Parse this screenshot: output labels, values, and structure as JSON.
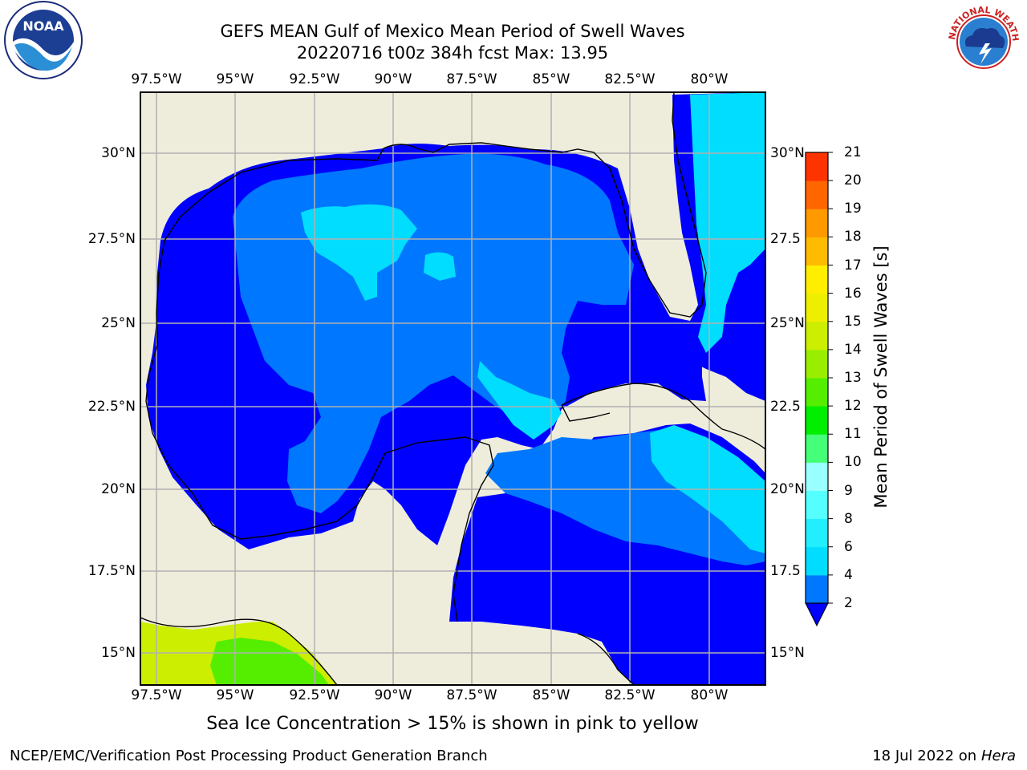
{
  "header": {
    "title_line1": "GEFS MEAN Gulf of Mexico Mean Period of Swell Waves",
    "title_line2": "20220716 t00z 384h fcst   Max: 13.95"
  },
  "logos": {
    "left": {
      "icon": "noaa-logo-icon",
      "text": "NOAA"
    },
    "right": {
      "icon": "nws-logo-icon",
      "text": "NATIONAL WEATHER SERVICE"
    }
  },
  "map": {
    "lon_labels": [
      "97.5°W",
      "95°W",
      "92.5°W",
      "90°W",
      "87.5°W",
      "85°W",
      "82.5°W",
      "80°W"
    ],
    "lat_labels": [
      "30°N",
      "27.5°N",
      "25°N",
      "22.5°N",
      "20°N",
      "17.5°N",
      "15°N"
    ],
    "lat_labels_right": [
      "30°N",
      "27.5",
      "25°N",
      "22.5",
      "20°N",
      "17.5",
      "15°N"
    ],
    "land_color": "#eeeddc",
    "grid_color": "#b0b0b0"
  },
  "colorbar": {
    "title": "Mean Period of Swell Waves [s]",
    "ticks": [
      "2",
      "4",
      "6",
      "8",
      "9",
      "10",
      "11",
      "12",
      "13",
      "14",
      "15",
      "16",
      "17",
      "18",
      "19",
      "20",
      "21"
    ],
    "colors": [
      "#0077ff",
      "#00ddff",
      "#22eeff",
      "#55ffff",
      "#99ffff",
      "#44ff77",
      "#00ee00",
      "#55ee00",
      "#99ee00",
      "#ccee00",
      "#eeee00",
      "#ffee00",
      "#ffbb00",
      "#ff9900",
      "#ff6600",
      "#ff3300",
      "#ff0000"
    ],
    "under_color": "#0000ff"
  },
  "footer": {
    "caption": "Sea Ice Concentration > 15% is shown in pink to yellow",
    "left": "NCEP/EMC/Verification Post Processing Product Generation Branch",
    "right_prefix": "18 Jul 2022 on ",
    "right_host": "Hera"
  }
}
